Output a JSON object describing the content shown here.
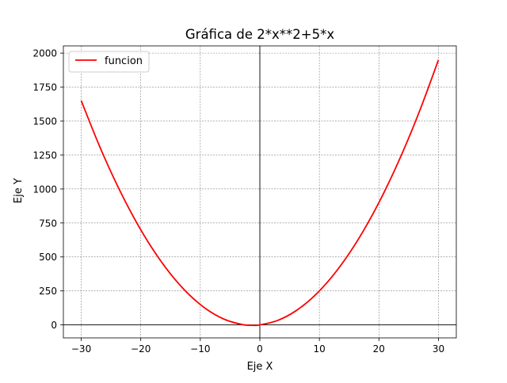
{
  "chart_data": {
    "type": "line",
    "title": "Gráfica de 2*x**2+5*x",
    "xlabel": "Eje X",
    "ylabel": "Eje Y",
    "xlim": [
      -33,
      33
    ],
    "ylim": [
      -95.625,
      2053.125
    ],
    "xticks": [
      {
        "value": -30,
        "label": "−30"
      },
      {
        "value": -20,
        "label": "−20"
      },
      {
        "value": -10,
        "label": "−10"
      },
      {
        "value": 0,
        "label": "0"
      },
      {
        "value": 10,
        "label": "10"
      },
      {
        "value": 20,
        "label": "20"
      },
      {
        "value": 30,
        "label": "30"
      }
    ],
    "yticks": [
      {
        "value": 0,
        "label": "0"
      },
      {
        "value": 250,
        "label": "250"
      },
      {
        "value": 500,
        "label": "500"
      },
      {
        "value": 750,
        "label": "750"
      },
      {
        "value": 1000,
        "label": "1000"
      },
      {
        "value": 1250,
        "label": "1250"
      },
      {
        "value": 1500,
        "label": "1500"
      },
      {
        "value": 1750,
        "label": "1750"
      },
      {
        "value": 2000,
        "label": "2000"
      }
    ],
    "grid": true,
    "legend_position": "upper-left",
    "axes_lines": {
      "x": 0,
      "y": 0
    },
    "series": [
      {
        "name": "funcion",
        "color": "#ff0000",
        "x": [
          -30,
          -27,
          -24,
          -21,
          -18,
          -15,
          -12,
          -9,
          -6,
          -3,
          -1.25,
          0,
          3,
          6,
          9,
          12,
          15,
          18,
          21,
          24,
          27,
          30
        ],
        "y": [
          1650,
          1323,
          1032,
          777,
          558,
          375,
          228,
          117,
          42,
          3,
          -3.125,
          0,
          33,
          102,
          207,
          348,
          525,
          738,
          987,
          1272,
          1593,
          1950
        ]
      }
    ]
  }
}
